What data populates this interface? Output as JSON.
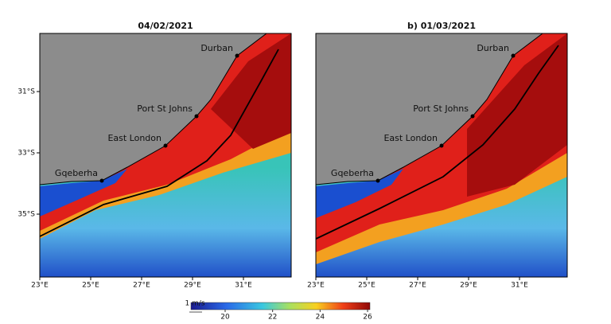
{
  "panels": [
    {
      "title": "04/02/2021",
      "places": [
        {
          "name": "Durban"
        },
        {
          "name": "Port St Johns"
        },
        {
          "name": "East London"
        },
        {
          "name": "Gqeberha"
        }
      ],
      "xticks": [
        "23°E",
        "25°E",
        "27°E",
        "29°E",
        "31°E"
      ]
    },
    {
      "title": "b) 01/03/2021",
      "places": [
        {
          "name": "Durban"
        },
        {
          "name": "Port St Johns"
        },
        {
          "name": "East London"
        },
        {
          "name": "Gqeberha"
        }
      ],
      "xticks": [
        "23°E",
        "25°E",
        "27°E",
        "29°E",
        "31°E"
      ]
    }
  ],
  "yticks": [
    "31°S",
    "33°S",
    "35°S"
  ],
  "colorbar": {
    "arrow_label": "1 m/s",
    "ticks": [
      "20",
      "22",
      "24",
      "26"
    ]
  }
}
